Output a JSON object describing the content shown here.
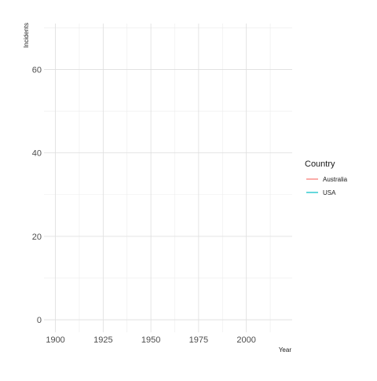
{
  "chart_data": {
    "type": "line",
    "title": "",
    "xlabel": "Year",
    "ylabel": "Incidents",
    "xlim": [
      1894,
      2024
    ],
    "ylim": [
      -3,
      71
    ],
    "x_ticks": [
      "1900",
      "1925",
      "1950",
      "1975",
      "2000"
    ],
    "y_ticks": [
      "0",
      "20",
      "40",
      "60"
    ],
    "grid": true,
    "legend": {
      "title": "Country",
      "position": "right"
    },
    "series": [
      {
        "name": "Australia",
        "color": "#F8766D",
        "x": [],
        "y": []
      },
      {
        "name": "USA",
        "color": "#00BFC4",
        "x": [],
        "y": []
      }
    ]
  }
}
